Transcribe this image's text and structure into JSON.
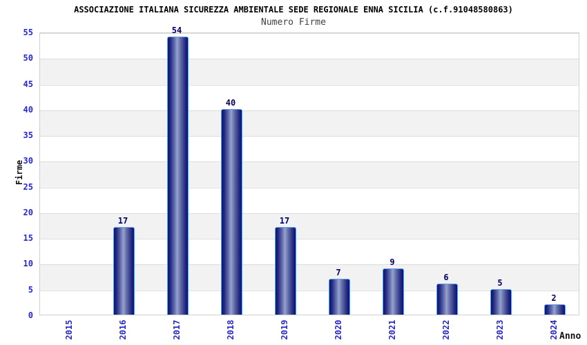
{
  "chart_data": {
    "type": "bar",
    "title": "ASSOCIAZIONE ITALIANA SICUREZZA AMBIENTALE SEDE REGIONALE ENNA SICILIA (c.f.91048580863)",
    "subtitle": "Numero Firme",
    "xlabel": "Anno",
    "ylabel": "Firme",
    "categories": [
      "2015",
      "2016",
      "2017",
      "2018",
      "2019",
      "2020",
      "2021",
      "2022",
      "2023",
      "2024"
    ],
    "values": [
      0,
      17,
      54,
      40,
      17,
      7,
      9,
      6,
      5,
      2
    ],
    "value_labels": [
      "",
      "17",
      "54",
      "40",
      "17",
      "7",
      "9",
      "6",
      "5",
      "2"
    ],
    "ylim": [
      0,
      55
    ],
    "ytick_step": 5,
    "ytick_labels": [
      "0",
      "5",
      "10",
      "15",
      "20",
      "25",
      "30",
      "35",
      "40",
      "45",
      "50",
      "55"
    ],
    "grid": "horizontal-gridlines-with-alternating-bands",
    "legend_position": "none",
    "bar_style": "vertical-cylinder-gradient"
  },
  "colors": {
    "background": "#ffffff",
    "title": "#000000",
    "subtitle": "#404040",
    "tick_label": "#2727cc",
    "value_label": "#000066",
    "axis_label": "#111111",
    "band_white": "#ffffff",
    "band_gray": "#f2f2f2",
    "gridline": "#dcdcdc",
    "plot_border": "#d0d0d0",
    "bar_border": "#5fa0f0",
    "bar_dark": "#10106a",
    "bar_mid": "#23277f",
    "bar_light": "#98a2cc"
  }
}
